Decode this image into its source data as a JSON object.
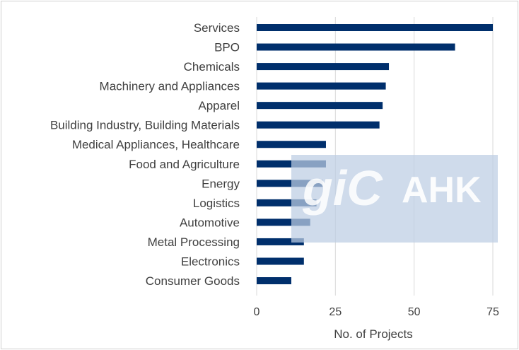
{
  "chart_data": {
    "type": "bar",
    "orientation": "horizontal",
    "categories": [
      "Services",
      "BPO",
      "Chemicals",
      "Machinery and Appliances",
      "Apparel",
      "Building Industry, Building Materials",
      "Medical Appliances, Healthcare",
      "Food and Agriculture",
      "Energy",
      "Logistics",
      "Automotive",
      "Metal Processing",
      "Electronics",
      "Consumer Goods"
    ],
    "values": [
      75,
      63,
      42,
      41,
      40,
      39,
      22,
      22,
      21,
      19,
      17,
      15,
      15,
      11
    ],
    "xlabel": "No. of Projects",
    "ylabel": "",
    "xlim": [
      0,
      75
    ],
    "xticks": [
      0,
      25,
      50,
      75
    ],
    "grid": "vertical",
    "bar_color": "#002f6c"
  },
  "watermark": {
    "logo_text": "giC",
    "brand_text": "AHK"
  }
}
